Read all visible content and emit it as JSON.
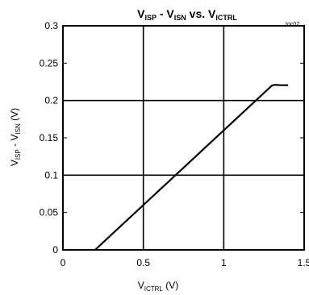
{
  "chart_data": {
    "type": "line",
    "title": {
      "main": "V",
      "sub1": "ISP",
      "mid": " - V",
      "sub2": "ISN",
      "tail": " vs. V",
      "sub3": "ICTRL"
    },
    "tag": "toc02",
    "xlabel": {
      "main": "V",
      "sub": "ICTRL",
      "unit": " (V)"
    },
    "ylabel": {
      "main": "V",
      "sub1": "ISP",
      "mid": " - V",
      "sub2": "ISN",
      "unit": " (V)"
    },
    "xlim": [
      0,
      1.5
    ],
    "ylim": [
      0,
      0.3
    ],
    "x_ticks": [
      0,
      0.5,
      1,
      1.5
    ],
    "x_tick_labels": [
      "0",
      "0.5",
      "1",
      "1.5"
    ],
    "y_ticks": [
      0,
      0.05,
      0.1,
      0.15,
      0.2,
      0.25,
      0.3
    ],
    "y_tick_labels": [
      "0",
      "0.05",
      "0.1",
      "0.15",
      "0.2",
      "0.25",
      "0.3"
    ],
    "grid_x": [
      0.5,
      1
    ],
    "grid_y": [
      0.1,
      0.2
    ],
    "grid": true,
    "series": [
      {
        "color": "#000000",
        "x": [
          0.2,
          1.3,
          1.32,
          1.35,
          1.4
        ],
        "y": [
          0.0,
          0.22,
          0.221,
          0.2205,
          0.2205
        ]
      }
    ]
  }
}
